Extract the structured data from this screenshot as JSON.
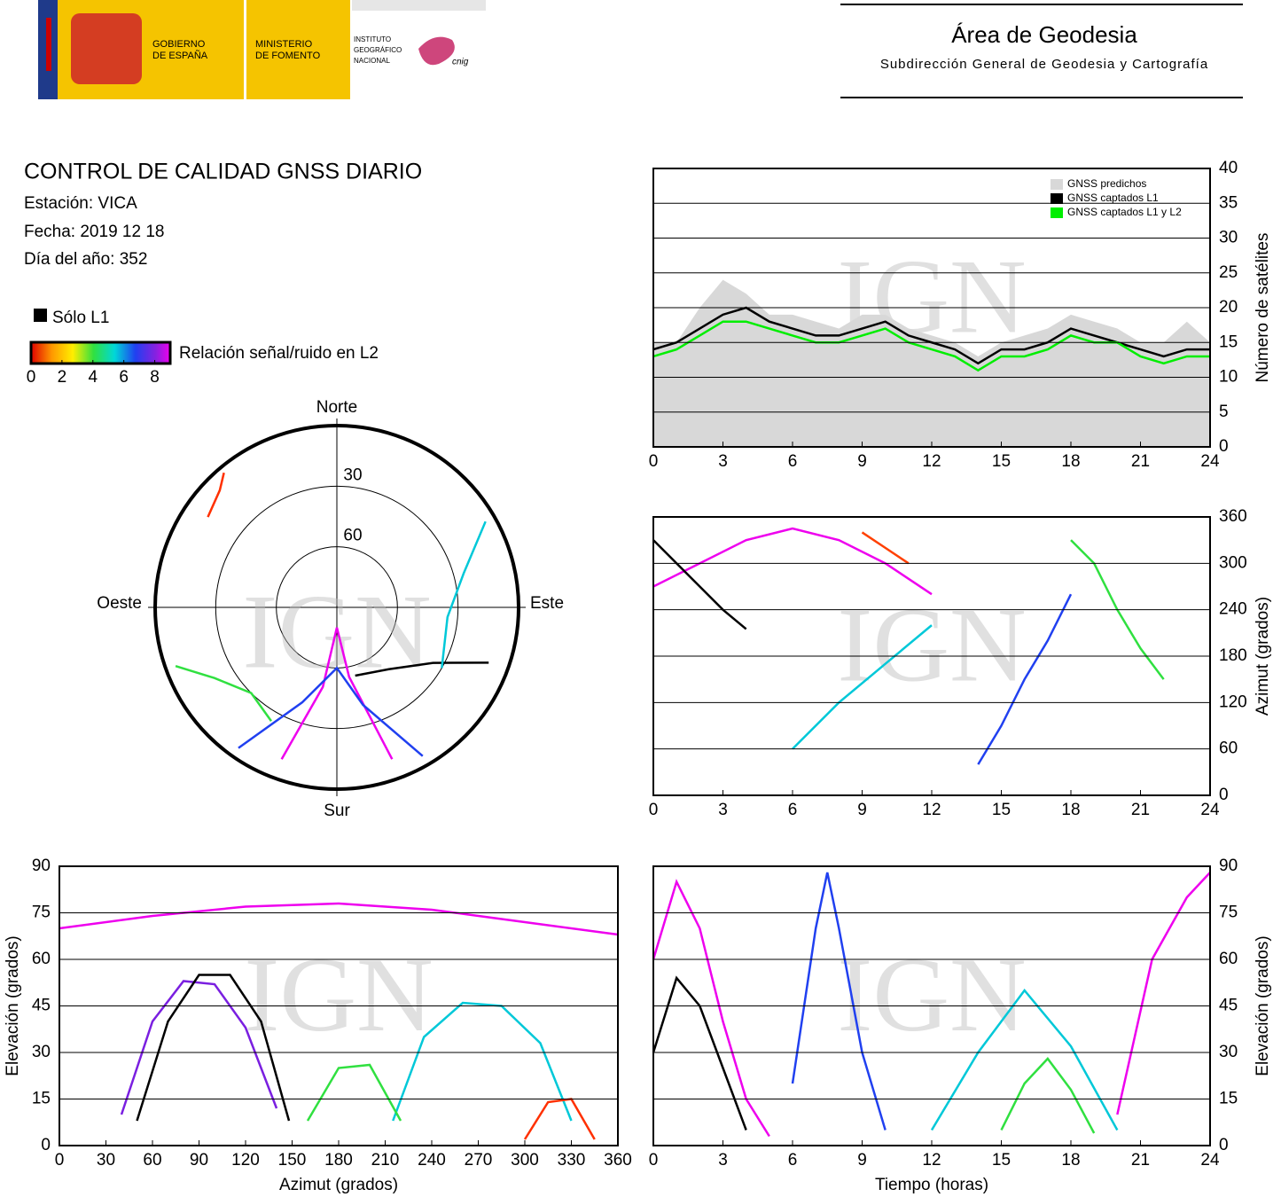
{
  "header": {
    "gov": [
      "GOBIERNO",
      "DE ESPAÑA"
    ],
    "ministry": [
      "MINISTERIO",
      "DE FOMENTO"
    ],
    "ign": [
      "INSTITUTO",
      "GEOGRÁFICO",
      "NACIONAL"
    ],
    "cnig": "cnig",
    "area": "Área de Geodesia",
    "subdir": "Subdirección General de Geodesia y Cartografía"
  },
  "report": {
    "title": "CONTROL DE CALIDAD GNSS DIARIO",
    "station": "Estación: VICA",
    "date": "Fecha: 2019 12 18",
    "doy": "Día del año: 352"
  },
  "legend": {
    "only_l1": "Sólo L1",
    "snr_label": "Relación señal/ruido en L2",
    "snr_ticks": [
      0,
      2,
      4,
      6,
      8
    ],
    "snr_range": [
      0,
      9
    ]
  },
  "chart_data": [
    {
      "type": "line",
      "watermark": "IGN",
      "ylabel": "Número de satélites",
      "y_axis_side": "right",
      "grid": true,
      "legend": "upper right",
      "x": [
        0,
        1,
        2,
        3,
        4,
        5,
        6,
        7,
        8,
        9,
        10,
        11,
        12,
        13,
        14,
        15,
        16,
        17,
        18,
        19,
        20,
        21,
        22,
        23,
        24
      ],
      "xlim": [
        0,
        24
      ],
      "xticks": [
        0,
        3,
        6,
        9,
        12,
        15,
        18,
        21,
        24
      ],
      "ylim": [
        0,
        40
      ],
      "yticks": [
        0,
        5,
        10,
        15,
        20,
        25,
        30,
        35,
        40
      ],
      "series": [
        {
          "name": "GNSS predichos",
          "color": "#d8d8d8",
          "fill": true,
          "values": [
            15,
            15,
            20,
            24,
            22,
            19,
            19,
            18,
            17,
            19,
            19,
            17,
            16,
            15,
            13,
            15,
            16,
            17,
            19,
            18,
            17,
            15,
            15,
            18,
            15
          ]
        },
        {
          "name": "GNSS captados L1",
          "color": "#000000",
          "values": [
            14,
            15,
            17,
            19,
            20,
            18,
            17,
            16,
            16,
            17,
            18,
            16,
            15,
            14,
            12,
            14,
            14,
            15,
            17,
            16,
            15,
            14,
            13,
            14,
            14
          ]
        },
        {
          "name": "GNSS captados L1 y L2",
          "color": "#00ee00",
          "values": [
            13,
            14,
            16,
            18,
            18,
            17,
            16,
            15,
            15,
            16,
            17,
            15,
            14,
            13,
            11,
            13,
            13,
            14,
            16,
            15,
            15,
            13,
            12,
            13,
            13
          ]
        }
      ]
    },
    {
      "type": "line",
      "watermark": "IGN",
      "ylabel": "Azimut (grados)",
      "y_axis_side": "right",
      "grid": true,
      "xlim": [
        0,
        24
      ],
      "xticks": [
        0,
        3,
        6,
        9,
        12,
        15,
        18,
        21,
        24
      ],
      "ylim": [
        0,
        360
      ],
      "yticks": [
        0,
        60,
        120,
        180,
        240,
        300,
        360
      ],
      "series": [
        {
          "color": "#ee00ee",
          "x": [
            0,
            2,
            4,
            6,
            8,
            10,
            12
          ],
          "values": [
            270,
            300,
            330,
            345,
            330,
            300,
            260
          ]
        },
        {
          "color": "#000000",
          "x": [
            0,
            1,
            2,
            3,
            4
          ],
          "values": [
            330,
            300,
            270,
            240,
            215
          ]
        },
        {
          "color": "#2040f0",
          "x": [
            14,
            15,
            16,
            17,
            18
          ],
          "values": [
            40,
            90,
            150,
            200,
            260
          ]
        },
        {
          "color": "#00c8d8",
          "x": [
            6,
            8,
            10,
            12
          ],
          "values": [
            60,
            120,
            170,
            220
          ]
        },
        {
          "color": "#30e040",
          "x": [
            18,
            19,
            20,
            21,
            22
          ],
          "values": [
            330,
            300,
            240,
            190,
            150
          ]
        },
        {
          "color": "#ff4000",
          "x": [
            9,
            10,
            11
          ],
          "values": [
            340,
            320,
            300
          ]
        }
      ]
    },
    {
      "type": "line",
      "watermark": "IGN",
      "xlabel": "Azimut (grados)",
      "ylabel": "Elevación (grados)",
      "y_axis_side": "left",
      "grid": true,
      "xlim": [
        0,
        360
      ],
      "xticks": [
        0,
        30,
        60,
        90,
        120,
        150,
        180,
        210,
        240,
        270,
        300,
        330,
        360
      ],
      "ylim": [
        0,
        90
      ],
      "yticks": [
        0,
        15,
        30,
        45,
        60,
        75,
        90
      ],
      "series": [
        {
          "color": "#ee00ee",
          "x": [
            0,
            60,
            120,
            180,
            240,
            300,
            360
          ],
          "values": [
            70,
            74,
            77,
            78,
            76,
            72,
            68
          ]
        },
        {
          "color": "#7a1fe0",
          "x": [
            40,
            60,
            80,
            100,
            120,
            140
          ],
          "values": [
            10,
            40,
            53,
            52,
            38,
            12
          ]
        },
        {
          "color": "#000000",
          "x": [
            50,
            70,
            90,
            110,
            130,
            148
          ],
          "values": [
            8,
            40,
            55,
            55,
            40,
            8
          ]
        },
        {
          "color": "#00c8d8",
          "x": [
            215,
            235,
            260,
            285,
            310,
            330
          ],
          "values": [
            8,
            35,
            46,
            45,
            33,
            8
          ]
        },
        {
          "color": "#30e040",
          "x": [
            160,
            180,
            200,
            220
          ],
          "values": [
            8,
            25,
            26,
            8
          ]
        },
        {
          "color": "#ff3000",
          "x": [
            300,
            315,
            330,
            345
          ],
          "values": [
            2,
            14,
            15,
            2
          ]
        }
      ]
    },
    {
      "type": "line",
      "watermark": "IGN",
      "xlabel": "Tiempo (horas)",
      "ylabel": "Elevación (grados)",
      "y_axis_side": "right",
      "grid": true,
      "xlim": [
        0,
        24
      ],
      "xticks": [
        0,
        3,
        6,
        9,
        12,
        15,
        18,
        21,
        24
      ],
      "ylim": [
        0,
        90
      ],
      "yticks": [
        0,
        15,
        30,
        45,
        60,
        75,
        90
      ],
      "series": [
        {
          "color": "#ee00ee",
          "x": [
            0,
            1,
            2,
            3,
            4,
            5
          ],
          "values": [
            60,
            85,
            70,
            40,
            15,
            3
          ]
        },
        {
          "color": "#2040f0",
          "x": [
            6,
            7,
            7.5,
            8,
            9,
            10
          ],
          "values": [
            20,
            70,
            88,
            70,
            30,
            5
          ]
        },
        {
          "color": "#000000",
          "x": [
            0,
            1,
            2,
            3,
            4
          ],
          "values": [
            30,
            54,
            45,
            25,
            5
          ]
        },
        {
          "color": "#00c8d8",
          "x": [
            12,
            14,
            16,
            18,
            20
          ],
          "values": [
            5,
            30,
            50,
            32,
            5
          ]
        },
        {
          "color": "#30e040",
          "x": [
            15,
            16,
            17,
            18,
            19
          ],
          "values": [
            5,
            20,
            28,
            18,
            4
          ]
        },
        {
          "color": "#ee00ee",
          "x": [
            20,
            21.5,
            23,
            24
          ],
          "values": [
            10,
            60,
            80,
            88
          ]
        }
      ]
    },
    {
      "type": "polar",
      "watermark": "IGN",
      "elevation_range": [
        0,
        90
      ],
      "rings": [
        30,
        60
      ],
      "directions": {
        "north": "Norte",
        "south": "Sur",
        "east": "Este",
        "west": "Oeste"
      },
      "series": [
        {
          "color": "#ee00ee",
          "azimuth": [
            200,
            190,
            180,
            170,
            160
          ],
          "elevation": [
            10,
            50,
            80,
            55,
            10
          ]
        },
        {
          "color": "#2040f0",
          "azimuth": [
            150,
            165,
            180,
            200,
            215
          ],
          "elevation": [
            5,
            40,
            60,
            40,
            5
          ]
        },
        {
          "color": "#000000",
          "azimuth": [
            110,
            120,
            140,
            165
          ],
          "elevation": [
            10,
            35,
            50,
            55
          ]
        },
        {
          "color": "#00c8d8",
          "azimuth": [
            60,
            75,
            95,
            120
          ],
          "elevation": [
            5,
            25,
            35,
            30
          ]
        },
        {
          "color": "#30e040",
          "azimuth": [
            250,
            240,
            225,
            210
          ],
          "elevation": [
            5,
            20,
            30,
            25
          ]
        },
        {
          "color": "#ff3000",
          "azimuth": [
            320,
            315,
            305
          ],
          "elevation": [
            3,
            8,
            12
          ]
        }
      ]
    }
  ]
}
